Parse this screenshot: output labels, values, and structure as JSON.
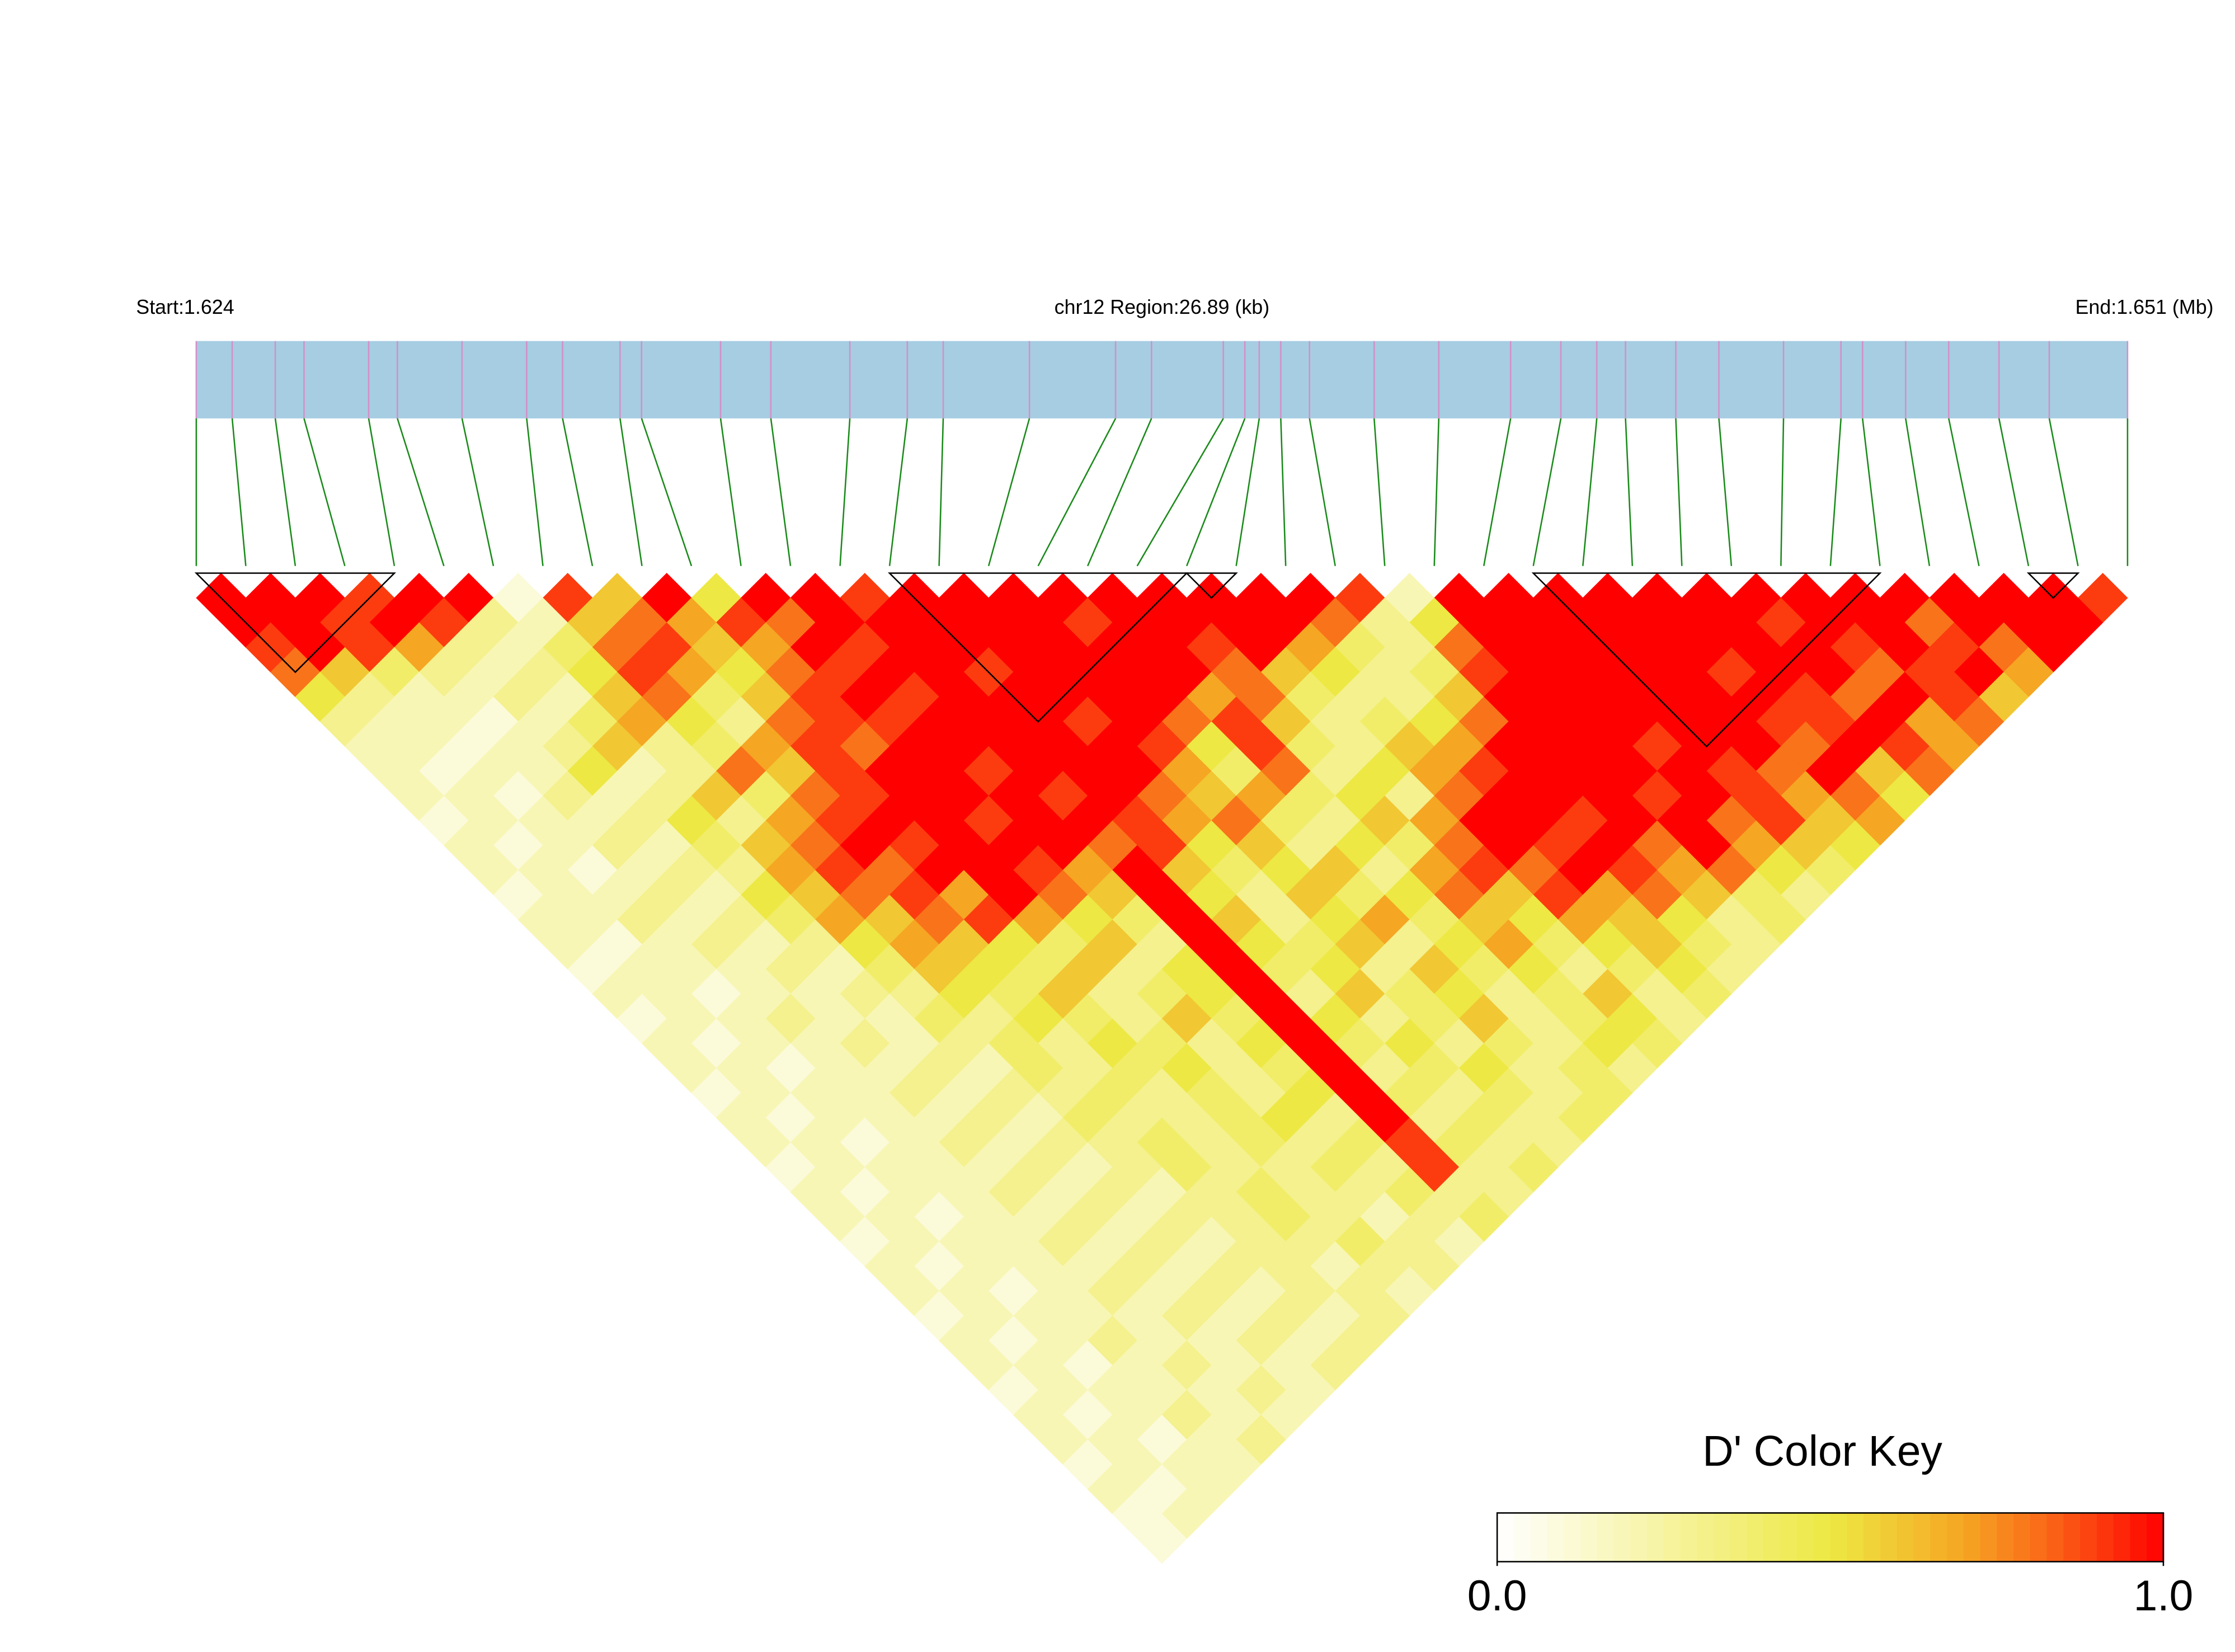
{
  "chart_data": {
    "type": "ld_heatmap",
    "start_label": "Start:1.624",
    "title": "chr12 Region:26.89 (kb)",
    "end_label": "End:1.651 (Mb)",
    "xlim": [
      0,
      26.89
    ],
    "positions": [
      0,
      0.5,
      1.1,
      1.5,
      2.4,
      2.8,
      3.7,
      4.6,
      5.1,
      5.9,
      6.2,
      7.3,
      8.0,
      9.1,
      9.9,
      10.4,
      11.6,
      12.8,
      13.3,
      14.3,
      14.6,
      14.8,
      15.1,
      15.5,
      16.4,
      17.3,
      18.3,
      19.0,
      19.5,
      19.9,
      20.6,
      21.2,
      22.1,
      22.9,
      23.2,
      23.8,
      24.4,
      25.1,
      25.8,
      26.89
    ],
    "bar_color": "#a6cde2",
    "marker_color": "#d48fc8",
    "connector_color": "#1a8a1a",
    "block_color": "#000000",
    "blocks": [
      [
        0,
        4
      ],
      [
        14,
        20
      ],
      [
        20,
        21
      ],
      [
        27,
        34
      ],
      [
        37,
        38
      ]
    ],
    "dprime": [
      [
        1,
        1,
        1,
        0.9,
        1,
        1,
        0.1,
        0.9,
        0.6,
        1,
        0.5,
        1,
        1,
        0.9,
        1,
        1,
        1,
        1,
        1,
        1,
        1,
        1,
        1,
        0.9,
        0.2,
        1,
        1,
        1,
        1,
        1,
        1,
        1,
        1,
        1,
        1,
        1,
        1,
        1,
        0.9
      ],
      [
        1,
        1,
        0.9,
        1,
        0.9,
        0.3,
        0.2,
        0.6,
        0.8,
        0.7,
        0.9,
        0.8,
        1,
        1,
        1,
        1,
        1,
        0.9,
        1,
        1,
        1,
        1,
        0.8,
        0.3,
        0.5,
        1,
        1,
        1,
        1,
        1,
        1,
        0.9,
        1,
        1,
        0.8,
        1,
        1,
        1
      ],
      [
        0.9,
        1,
        0.9,
        0.7,
        0.3,
        0.2,
        0.4,
        0.8,
        0.9,
        0.6,
        0.7,
        1,
        0.9,
        1,
        1,
        1,
        1,
        1,
        1,
        0.9,
        1,
        0.7,
        0.4,
        0.3,
        0.8,
        1,
        1,
        1,
        1,
        1,
        1,
        1,
        0.9,
        1,
        0.9,
        0.8,
        1
      ],
      [
        0.8,
        0.6,
        0.4,
        0.3,
        0.2,
        0.3,
        0.5,
        0.9,
        0.7,
        0.5,
        0.8,
        0.9,
        1,
        1,
        0.9,
        1,
        1,
        1,
        1,
        0.8,
        0.6,
        0.5,
        0.3,
        0.4,
        0.9,
        1,
        1,
        1,
        1,
        0.9,
        1,
        1,
        0.8,
        0.9,
        1,
        0.7
      ],
      [
        0.5,
        0.3,
        0.2,
        0.2,
        0.3,
        0.2,
        0.6,
        0.8,
        0.4,
        0.6,
        0.9,
        1,
        0.9,
        1,
        1,
        1,
        1,
        1,
        0.7,
        0.8,
        0.4,
        0.3,
        0.3,
        0.6,
        1,
        1,
        1,
        1,
        1,
        1,
        0.9,
        0.8,
        1,
        0.9,
        0.6
      ],
      [
        0.3,
        0.2,
        0.2,
        0.1,
        0.2,
        0.4,
        0.7,
        0.5,
        0.3,
        0.8,
        0.9,
        0.9,
        1,
        1,
        1,
        0.9,
        1,
        0.8,
        0.9,
        0.6,
        0.3,
        0.4,
        0.5,
        0.8,
        1,
        1,
        1,
        1,
        1,
        0.9,
        0.9,
        1,
        0.7,
        0.8
      ],
      [
        0.2,
        0.2,
        0.1,
        0.2,
        0.3,
        0.6,
        0.3,
        0.4,
        0.7,
        0.9,
        0.8,
        1,
        1,
        1,
        1,
        1,
        0.9,
        0.5,
        0.9,
        0.4,
        0.3,
        0.6,
        0.7,
        1,
        1,
        1,
        0.9,
        1,
        1,
        0.8,
        1,
        0.9,
        0.7
      ],
      [
        0.2,
        0.1,
        0.2,
        0.2,
        0.5,
        0.2,
        0.3,
        0.8,
        0.6,
        0.9,
        1,
        1,
        0.9,
        1,
        1,
        1,
        0.7,
        0.4,
        0.8,
        0.3,
        0.5,
        0.7,
        0.9,
        1,
        1,
        1,
        1,
        0.9,
        0.8,
        1,
        0.6,
        0.8
      ],
      [
        0.2,
        0.2,
        0.1,
        0.3,
        0.2,
        0.3,
        0.6,
        0.4,
        0.8,
        0.9,
        1,
        1,
        1,
        0.9,
        1,
        0.8,
        0.6,
        0.7,
        0.4,
        0.5,
        0.3,
        0.8,
        1,
        1,
        1,
        0.9,
        1,
        0.9,
        0.7,
        0.8,
        0.5
      ],
      [
        0.1,
        0.2,
        0.2,
        0.2,
        0.3,
        0.5,
        0.3,
        0.7,
        0.9,
        1,
        1,
        0.9,
        1,
        1,
        0.9,
        0.7,
        0.8,
        0.4,
        0.3,
        0.6,
        0.7,
        1,
        1,
        0.9,
        1,
        1,
        0.8,
        0.9,
        0.6,
        0.7
      ],
      [
        0.2,
        0.1,
        0.2,
        0.3,
        0.2,
        0.4,
        0.6,
        0.8,
        1,
        0.9,
        1,
        1,
        1,
        0.8,
        0.9,
        0.5,
        0.6,
        0.3,
        0.5,
        0.4,
        0.8,
        1,
        0.9,
        1,
        0.8,
        1,
        0.7,
        0.6,
        0.5
      ],
      [
        0.2,
        0.2,
        0.1,
        0.2,
        0.3,
        0.3,
        0.7,
        0.9,
        0.8,
        1,
        1,
        0.9,
        0.7,
        1,
        0.6,
        0.4,
        0.5,
        0.6,
        0.3,
        0.7,
        0.9,
        0.8,
        1,
        0.9,
        0.7,
        0.8,
        0.5,
        0.4
      ],
      [
        0.1,
        0.2,
        0.2,
        0.3,
        0.2,
        0.5,
        0.6,
        0.8,
        0.9,
        0.7,
        1,
        0.8,
        0.6,
        1,
        0.5,
        0.3,
        0.6,
        0.4,
        0.5,
        0.8,
        0.6,
        0.9,
        0.7,
        0.8,
        0.6,
        0.4,
        0.3
      ],
      [
        0.2,
        0.2,
        0.3,
        0.2,
        0.3,
        0.4,
        0.7,
        0.6,
        0.8,
        0.9,
        0.7,
        0.5,
        0.4,
        1,
        0.6,
        0.3,
        0.5,
        0.7,
        0.4,
        0.6,
        0.5,
        0.7,
        0.6,
        0.5,
        0.3,
        0.4
      ],
      [
        0.2,
        0.1,
        0.2,
        0.3,
        0.2,
        0.3,
        0.5,
        0.7,
        0.6,
        0.5,
        0.4,
        0.6,
        0.3,
        1,
        0.5,
        0.4,
        0.6,
        0.3,
        0.5,
        0.7,
        0.4,
        0.5,
        0.6,
        0.4,
        0.3
      ],
      [
        0.1,
        0.2,
        0.2,
        0.2,
        0.3,
        0.2,
        0.4,
        0.6,
        0.5,
        0.4,
        0.6,
        0.3,
        0.5,
        1,
        0.4,
        0.5,
        0.3,
        0.6,
        0.4,
        0.5,
        0.3,
        0.4,
        0.5,
        0.3
      ],
      [
        0.2,
        0.2,
        0.1,
        0.2,
        0.2,
        0.3,
        0.3,
        0.5,
        0.4,
        0.6,
        0.3,
        0.4,
        0.5,
        1,
        0.3,
        0.6,
        0.4,
        0.5,
        0.3,
        0.4,
        0.6,
        0.3,
        0.4
      ],
      [
        0.1,
        0.2,
        0.2,
        0.3,
        0.2,
        0.2,
        0.4,
        0.3,
        0.5,
        0.4,
        0.3,
        0.6,
        0.4,
        1,
        0.5,
        0.3,
        0.4,
        0.6,
        0.3,
        0.4,
        0.5,
        0.3
      ],
      [
        0.2,
        0.1,
        0.2,
        0.2,
        0.3,
        0.2,
        0.3,
        0.4,
        0.3,
        0.5,
        0.4,
        0.3,
        0.5,
        1,
        0.4,
        0.5,
        0.3,
        0.4,
        0.3,
        0.5,
        0.4
      ],
      [
        0.2,
        0.2,
        0.1,
        0.2,
        0.2,
        0.3,
        0.2,
        0.4,
        0.3,
        0.4,
        0.5,
        0.3,
        0.4,
        1,
        0.3,
        0.4,
        0.5,
        0.3,
        0.4,
        0.3
      ],
      [
        0.1,
        0.2,
        0.2,
        0.2,
        0.3,
        0.2,
        0.3,
        0.3,
        0.4,
        0.3,
        0.4,
        0.3,
        0.5,
        1,
        0.4,
        0.3,
        0.4,
        0.3,
        0.4
      ],
      [
        0.2,
        0.1,
        0.2,
        0.2,
        0.2,
        0.3,
        0.2,
        0.4,
        0.3,
        0.3,
        0.4,
        0.5,
        0.3,
        1,
        0.3,
        0.4,
        0.3,
        0.4
      ],
      [
        0.2,
        0.2,
        0.1,
        0.2,
        0.3,
        0.2,
        0.3,
        0.3,
        0.4,
        0.3,
        0.4,
        0.3,
        0.4,
        0.9,
        0.4,
        0.3,
        0.3
      ],
      [
        0.1,
        0.2,
        0.2,
        0.2,
        0.2,
        0.3,
        0.2,
        0.3,
        0.4,
        0.3,
        0.3,
        0.4,
        0.3,
        0.9,
        0.3,
        0.4
      ],
      [
        0.2,
        0.1,
        0.2,
        0.2,
        0.3,
        0.2,
        0.3,
        0.2,
        0.3,
        0.4,
        0.3,
        0.3,
        0.4,
        0.3,
        0.3
      ],
      [
        0.2,
        0.2,
        0.1,
        0.2,
        0.2,
        0.3,
        0.2,
        0.3,
        0.3,
        0.4,
        0.3,
        0.2,
        0.3,
        0.4
      ],
      [
        0.1,
        0.2,
        0.2,
        0.2,
        0.3,
        0.2,
        0.3,
        0.2,
        0.3,
        0.3,
        0.4,
        0.3,
        0.2
      ],
      [
        0.2,
        0.1,
        0.2,
        0.2,
        0.2,
        0.3,
        0.2,
        0.3,
        0.3,
        0.2,
        0.3,
        0.3
      ],
      [
        0.2,
        0.2,
        0.1,
        0.2,
        0.3,
        0.2,
        0.3,
        0.2,
        0.3,
        0.3,
        0.2
      ],
      [
        0.1,
        0.2,
        0.2,
        0.2,
        0.2,
        0.3,
        0.2,
        0.3,
        0.2,
        0.3
      ],
      [
        0.2,
        0.1,
        0.2,
        0.3,
        0.2,
        0.2,
        0.3,
        0.2,
        0.3
      ],
      [
        0.2,
        0.2,
        0.1,
        0.2,
        0.3,
        0.2,
        0.2,
        0.3
      ],
      [
        0.1,
        0.2,
        0.2,
        0.2,
        0.2,
        0.3,
        0.2
      ],
      [
        0.2,
        0.1,
        0.2,
        0.3,
        0.2,
        0.2
      ],
      [
        0.2,
        0.2,
        0.1,
        0.2,
        0.3
      ],
      [
        0.1,
        0.2,
        0.2,
        0.2
      ],
      [
        0.2,
        0.1,
        0.2
      ],
      [
        0.1,
        0.2
      ],
      [
        0.1
      ]
    ],
    "colorscale": [
      {
        "stop": 0,
        "color": "#ffffff"
      },
      {
        "stop": 0.5,
        "color": "#ede843"
      },
      {
        "stop": 0.7,
        "color": "#f5a623"
      },
      {
        "stop": 0.85,
        "color": "#fb5a16"
      },
      {
        "stop": 1,
        "color": "#ff0000"
      }
    ],
    "legend_title": "D' Color Key",
    "clim": [
      0,
      1
    ],
    "colorbar_ticks": [
      {
        "value": 0,
        "label": "0.0"
      },
      {
        "value": 1,
        "label": "1.0"
      }
    ]
  }
}
